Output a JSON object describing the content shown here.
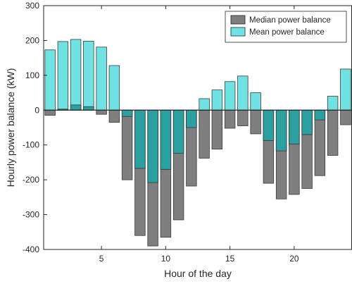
{
  "chart_data": {
    "type": "bar",
    "xlabel": "Hour of the day",
    "ylabel": "Hourly power balance (kW)",
    "xlim": [
      0.5,
      24.5
    ],
    "ylim": [
      -400,
      300
    ],
    "xticks": [
      5,
      10,
      15,
      20
    ],
    "yticks": [
      -400,
      -300,
      -200,
      -100,
      0,
      100,
      200,
      300
    ],
    "x": [
      1,
      2,
      3,
      4,
      5,
      6,
      7,
      8,
      9,
      10,
      11,
      12,
      13,
      14,
      15,
      16,
      17,
      18,
      19,
      20,
      21,
      22,
      23,
      24
    ],
    "legend_position": "top-right",
    "series": [
      {
        "name": "Median power balance",
        "color": "#7f7f7f",
        "values": [
          -15,
          3,
          15,
          10,
          -12,
          -35,
          -200,
          -360,
          -390,
          -365,
          -315,
          -218,
          -138,
          -112,
          -52,
          -45,
          -68,
          -210,
          -255,
          -242,
          -225,
          -188,
          -130,
          -42
        ]
      },
      {
        "name": "Mean power balance",
        "color": "#6fe3e3",
        "values": [
          173,
          197,
          203,
          198,
          181,
          128,
          -18,
          -167,
          -208,
          -170,
          -124,
          -50,
          33,
          58,
          82,
          98,
          50,
          -87,
          -117,
          -97,
          -70,
          -28,
          40,
          118
        ]
      }
    ]
  }
}
